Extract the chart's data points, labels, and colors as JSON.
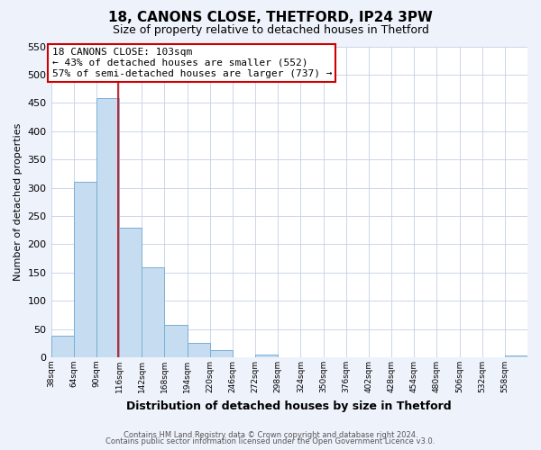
{
  "title": "18, CANONS CLOSE, THETFORD, IP24 3PW",
  "subtitle": "Size of property relative to detached houses in Thetford",
  "xlabel": "Distribution of detached houses by size in Thetford",
  "ylabel": "Number of detached properties",
  "bar_color": "#c6dcf0",
  "bar_edge_color": "#7aafd4",
  "bin_starts": [
    26,
    52,
    78,
    104,
    130,
    156,
    182,
    208,
    234,
    260,
    286,
    312,
    338,
    364,
    390,
    416,
    442,
    468,
    494,
    520,
    546
  ],
  "bar_heights": [
    38,
    310,
    458,
    230,
    160,
    57,
    26,
    12,
    0,
    5,
    0,
    0,
    0,
    0,
    0,
    0,
    0,
    0,
    0,
    0,
    3
  ],
  "bin_width": 26,
  "xtick_labels": [
    "38sqm",
    "64sqm",
    "90sqm",
    "116sqm",
    "142sqm",
    "168sqm",
    "194sqm",
    "220sqm",
    "246sqm",
    "272sqm",
    "298sqm",
    "324sqm",
    "350sqm",
    "376sqm",
    "402sqm",
    "428sqm",
    "454sqm",
    "480sqm",
    "506sqm",
    "532sqm",
    "558sqm"
  ],
  "ylim": [
    0,
    550
  ],
  "yticks": [
    0,
    50,
    100,
    150,
    200,
    250,
    300,
    350,
    400,
    450,
    500,
    550
  ],
  "property_line_x": 103,
  "annotation_title": "18 CANONS CLOSE: 103sqm",
  "annotation_line1": "← 43% of detached houses are smaller (552)",
  "annotation_line2": "57% of semi-detached houses are larger (737) →",
  "footer1": "Contains HM Land Registry data © Crown copyright and database right 2024.",
  "footer2": "Contains public sector information licensed under the Open Government Licence v3.0.",
  "background_color": "#eef2fb",
  "plot_bg_color": "#ffffff",
  "grid_color": "#c5cfe8"
}
